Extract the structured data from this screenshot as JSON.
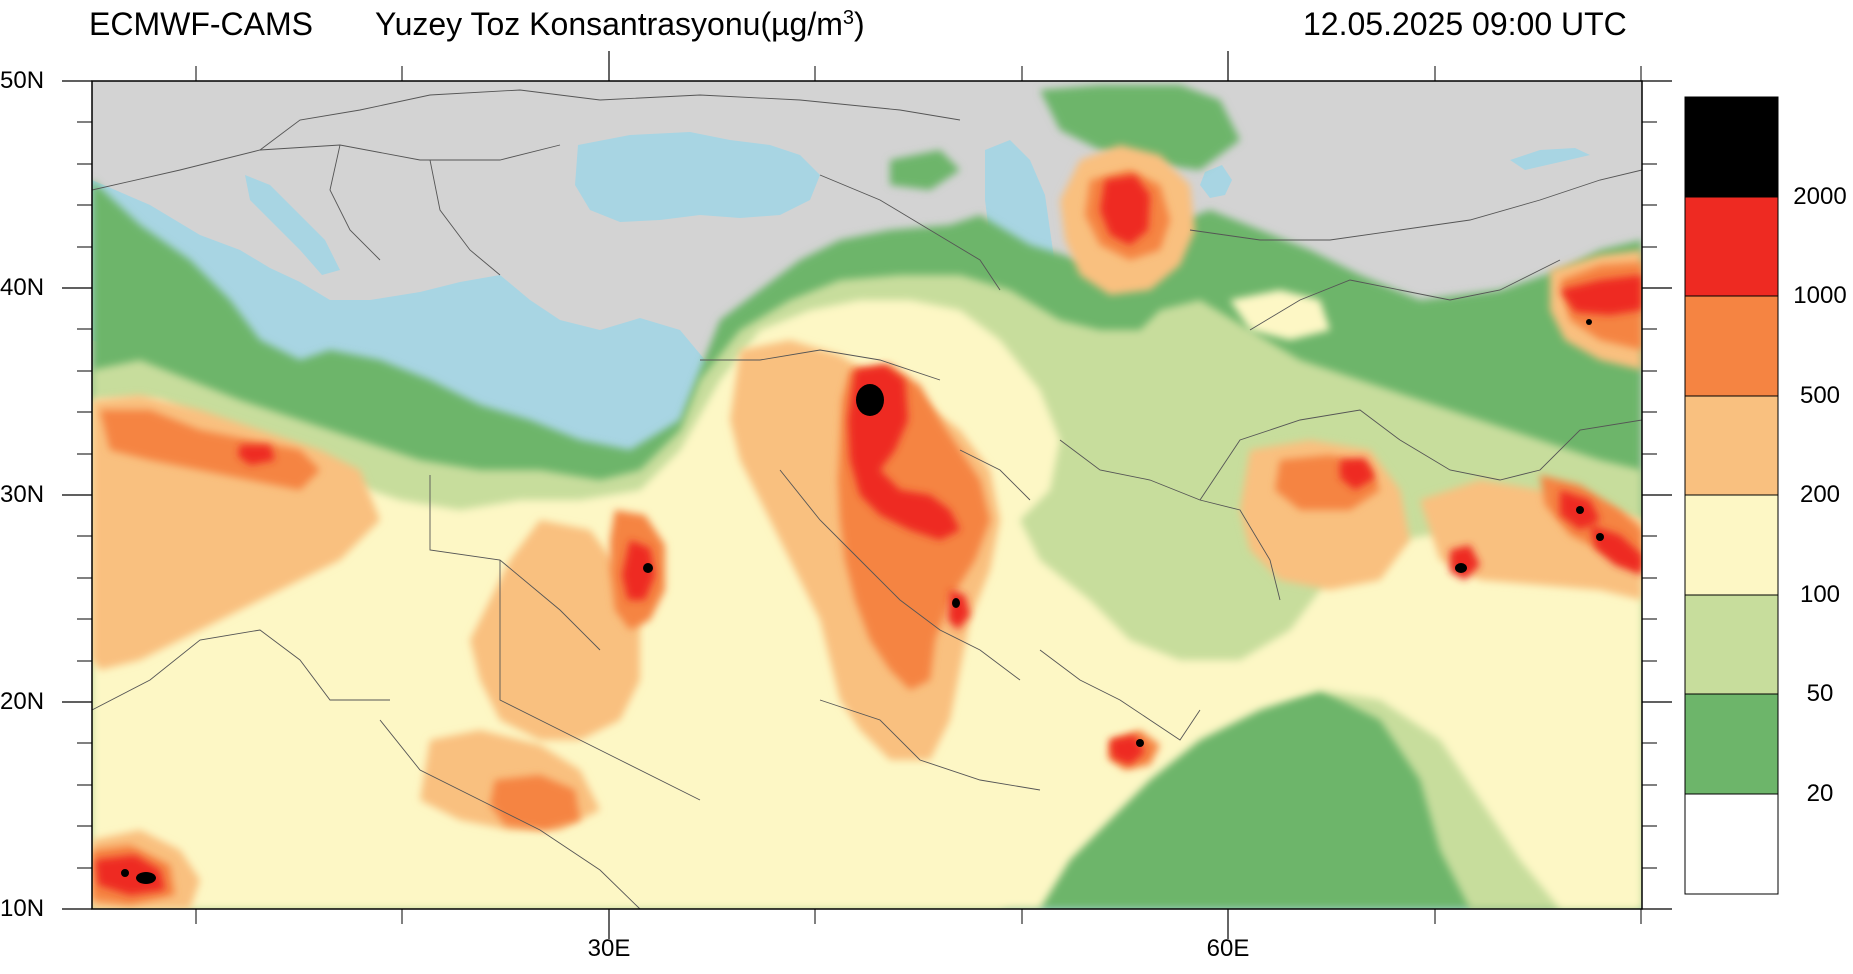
{
  "header": {
    "model": "ECMWF-CAMS",
    "title_main": "Yuzey Toz Konsantrasyonu(µg/m",
    "title_sup": "3",
    "title_close": ")",
    "datetime": "12.05.2025 09:00 UTC"
  },
  "axes": {
    "lat_labels": [
      "50N",
      "40N",
      "30N",
      "20N",
      "10N"
    ],
    "lon_labels": [
      "30E",
      "60E"
    ]
  },
  "colorbar": {
    "labels": [
      "2000",
      "1000",
      "500",
      "200",
      "100",
      "50",
      "20"
    ],
    "colors": [
      "#000000",
      "#ee2a22",
      "#f58442",
      "#f9c07f",
      "#fdf7c5",
      "#c7dd9c",
      "#6db56a",
      "#ffffff"
    ]
  },
  "palette": {
    "land": "#d3d3d3",
    "water": "#a8d5e3",
    "border": "#555555"
  }
}
